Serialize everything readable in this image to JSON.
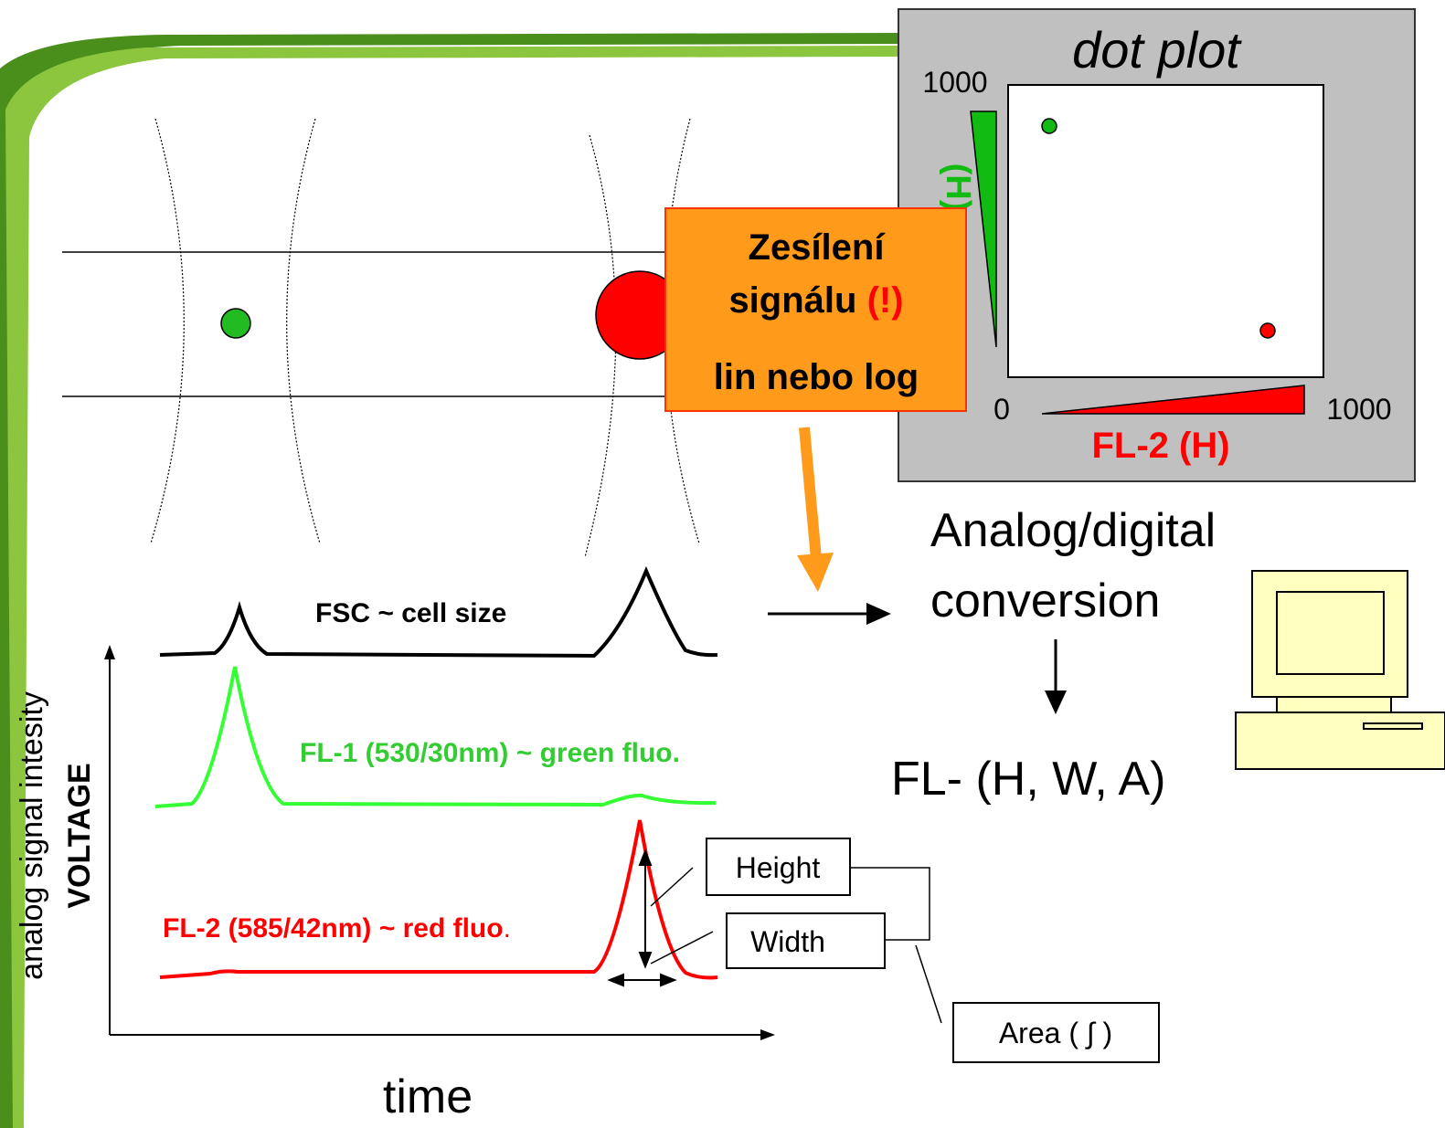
{
  "dot_plot": {
    "title": "dot plot",
    "y_max": "1000",
    "y_label": "(H)",
    "x_min": "0",
    "x_max": "1000",
    "x_label": "FL-2 (H)"
  },
  "amplifier": {
    "line1": "Zesílení",
    "line2": "signálu",
    "line2_mark": "(!)",
    "line3": "lin nebo log"
  },
  "conversion": {
    "line1": "Analog/digital",
    "line2": "conversion",
    "result": "FL- (H, W, A)"
  },
  "signals": {
    "fsc": "FSC ~ cell size",
    "fl1": "FL-1 (530/30nm) ~ green fluo.",
    "fl2": "FL-2 (585/42nm) ~ red fluo",
    "fl2_end": "."
  },
  "parameters": {
    "height": "Height",
    "width": "Width",
    "area": "Area ( ∫ )"
  },
  "axes": {
    "y_label": "analog signal intesity",
    "y_label_bold": "VOLTAGE",
    "x_label": "time"
  }
}
